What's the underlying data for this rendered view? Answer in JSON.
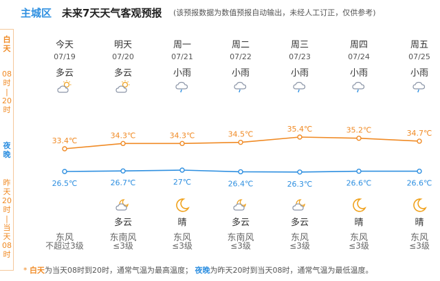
{
  "header": {
    "district": "主城区",
    "title": "未来7天天气客观预报",
    "note": "(该预报数据为数值预报自动输出，未经人工订正，仅供参考)"
  },
  "sidebar": {
    "day_label": "白天",
    "day_time": "08时|20时",
    "night_label": "夜晚",
    "night_time": "昨天20时|当天08时"
  },
  "days": [
    {
      "weekday": "今天",
      "date": "07/19",
      "day_weather": "多云",
      "day_icon": "partly-cloudy-day-icon",
      "night_weather": "",
      "night_icon": "",
      "wind_dir": "东风",
      "wind_level": "不超过3级",
      "high": "33.4℃",
      "low": "26.5℃"
    },
    {
      "weekday": "明天",
      "date": "07/20",
      "day_weather": "多云",
      "day_icon": "partly-cloudy-day-icon",
      "night_weather": "多云",
      "night_icon": "partly-cloudy-night-icon",
      "wind_dir": "东南风",
      "wind_level": "≤3级",
      "high": "34.3℃",
      "low": "26.7℃"
    },
    {
      "weekday": "周一",
      "date": "07/21",
      "day_weather": "小雨",
      "day_icon": "light-rain-icon",
      "night_weather": "晴",
      "night_icon": "moon-icon",
      "wind_dir": "东风",
      "wind_level": "≤3级",
      "high": "34.3℃",
      "low": "27℃"
    },
    {
      "weekday": "周二",
      "date": "07/22",
      "day_weather": "小雨",
      "day_icon": "light-rain-icon",
      "night_weather": "多云",
      "night_icon": "partly-cloudy-night-icon",
      "wind_dir": "东南风",
      "wind_level": "≤3级",
      "high": "34.5℃",
      "low": "26.4℃"
    },
    {
      "weekday": "周三",
      "date": "07/23",
      "day_weather": "小雨",
      "day_icon": "light-rain-icon",
      "night_weather": "多云",
      "night_icon": "partly-cloudy-night-icon",
      "wind_dir": "东风",
      "wind_level": "≤3级",
      "high": "35.4℃",
      "low": "26.3℃"
    },
    {
      "weekday": "周四",
      "date": "07/24",
      "day_weather": "小雨",
      "day_icon": "light-rain-icon",
      "night_weather": "晴",
      "night_icon": "moon-icon",
      "wind_dir": "东风",
      "wind_level": "≤3级",
      "high": "35.2℃",
      "low": "26.6℃"
    },
    {
      "weekday": "周五",
      "date": "07/25",
      "day_weather": "小雨",
      "day_icon": "light-rain-icon",
      "night_weather": "晴",
      "night_icon": "moon-icon",
      "wind_dir": "东风",
      "wind_level": "≤3级",
      "high": "34.7℃",
      "low": "26.6℃"
    }
  ],
  "temps": {
    "high_values": [
      33.4,
      34.3,
      34.3,
      34.5,
      35.4,
      35.2,
      34.7
    ],
    "low_values": [
      26.5,
      26.7,
      27,
      26.4,
      26.3,
      26.6,
      26.6
    ],
    "high_color": "#f08a24",
    "low_color": "#2e8fe0"
  },
  "footer": {
    "star": "*",
    "day_word": "白天",
    "day_text": "为当天08时到20时，通常气温为最高温度；",
    "night_word": "夜晚",
    "night_text": "为昨天20时到当天08时，通常气温为最低温度。"
  }
}
